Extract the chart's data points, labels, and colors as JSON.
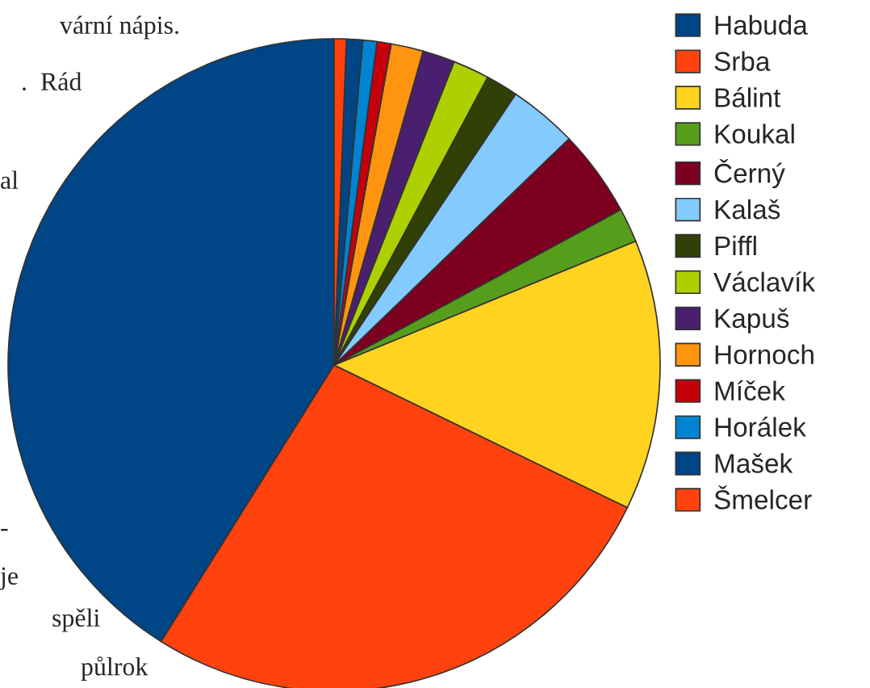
{
  "chart_data": {
    "type": "pie",
    "categories": [
      "Habuda",
      "Srba",
      "Bálint",
      "Koukal",
      "Černý",
      "Kalaš",
      "Piffl",
      "Václavík",
      "Kapuš",
      "Hornoch",
      "Míček",
      "Horálek",
      "Mašek",
      "Šmelcer"
    ],
    "values": [
      41.1,
      26.7,
      13.4,
      1.7,
      4.3,
      3.4,
      1.6,
      1.8,
      1.6,
      1.6,
      0.7,
      0.7,
      0.8,
      0.6
    ],
    "colors": [
      "#004586",
      "#ff420e",
      "#ffd320",
      "#579d1c",
      "#7e0021",
      "#83caff",
      "#314004",
      "#aecf00",
      "#4b1f6f",
      "#ff950e",
      "#c5000b",
      "#0084d1",
      "#004586",
      "#ff420e"
    ],
    "legend": "right",
    "annotations": [
      "vární nápis.",
      ".  Rád",
      "al",
      "-",
      "je",
      "spěli",
      "půlrok"
    ]
  }
}
